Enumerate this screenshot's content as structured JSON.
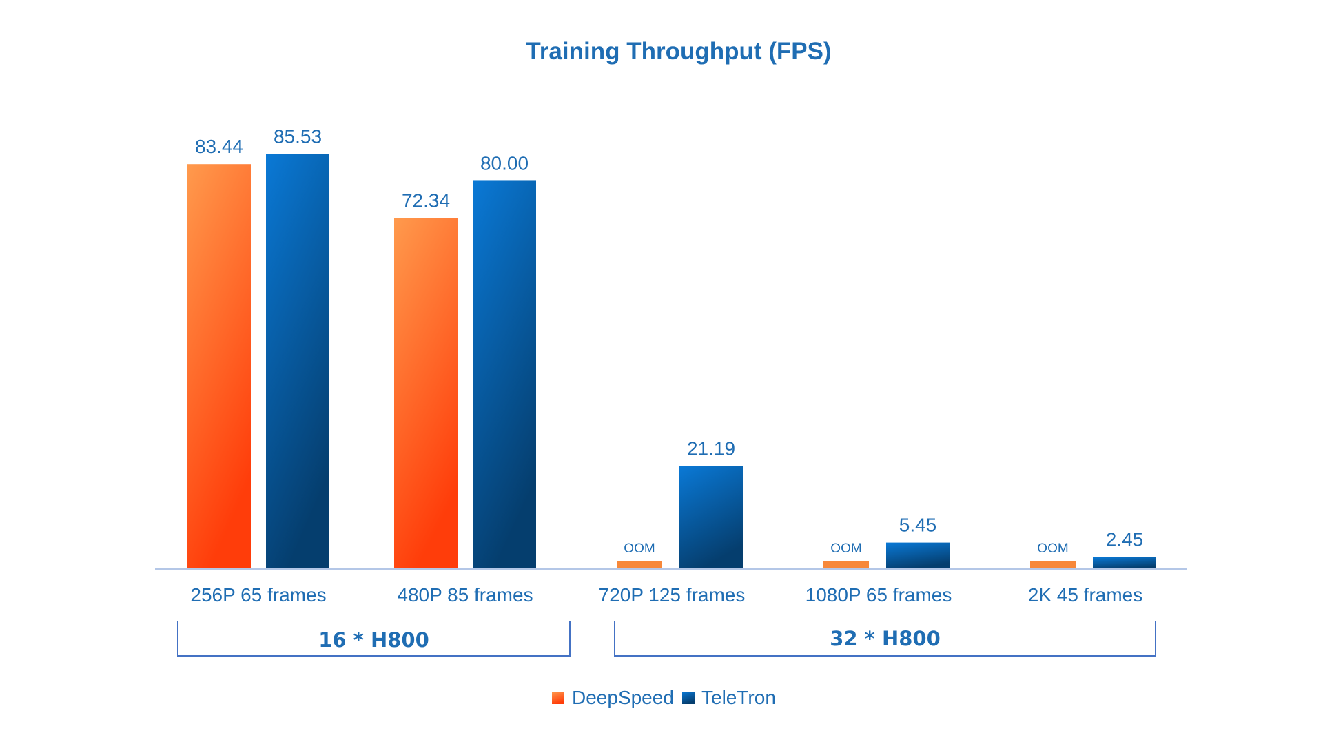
{
  "colors": {
    "text": "#1F6DB3",
    "axis": "#B4C7E7",
    "bracket": "#4472C4",
    "deepspeed_light": "#FF9A4D",
    "deepspeed_dark": "#FF3D0A",
    "deepspeed_small": "#F7883A",
    "teletron_light": "#0A79D6",
    "teletron_dark": "#053E6E"
  },
  "chart_data": {
    "type": "bar",
    "title": "Training Throughput (FPS)",
    "categories": [
      "256P 65 frames",
      "480P 85 frames",
      "720P 125 frames",
      "1080P 65 frames",
      "2K 45 frames"
    ],
    "series": [
      {
        "name": "DeepSpeed",
        "values": [
          83.44,
          72.34,
          null,
          null,
          null
        ],
        "labels": [
          "83.44",
          "72.34",
          "OOM",
          "OOM",
          "OOM"
        ]
      },
      {
        "name": "TeleTron",
        "values": [
          85.53,
          80.0,
          21.19,
          5.45,
          2.45
        ],
        "labels": [
          "85.53",
          "80.00",
          "21.19",
          "5.45",
          "2.45"
        ]
      }
    ],
    "groups": [
      {
        "label": "16 * H800",
        "categories": [
          "256P 65 frames",
          "480P 85 frames"
        ]
      },
      {
        "label": "32 * H800",
        "categories": [
          "720P 125 frames",
          "1080P 65 frames",
          "2K 45 frames"
        ]
      }
    ],
    "ylim": [
      0,
      90
    ],
    "grid": false,
    "legend": "bottom-center",
    "xlabel": "",
    "ylabel": ""
  }
}
